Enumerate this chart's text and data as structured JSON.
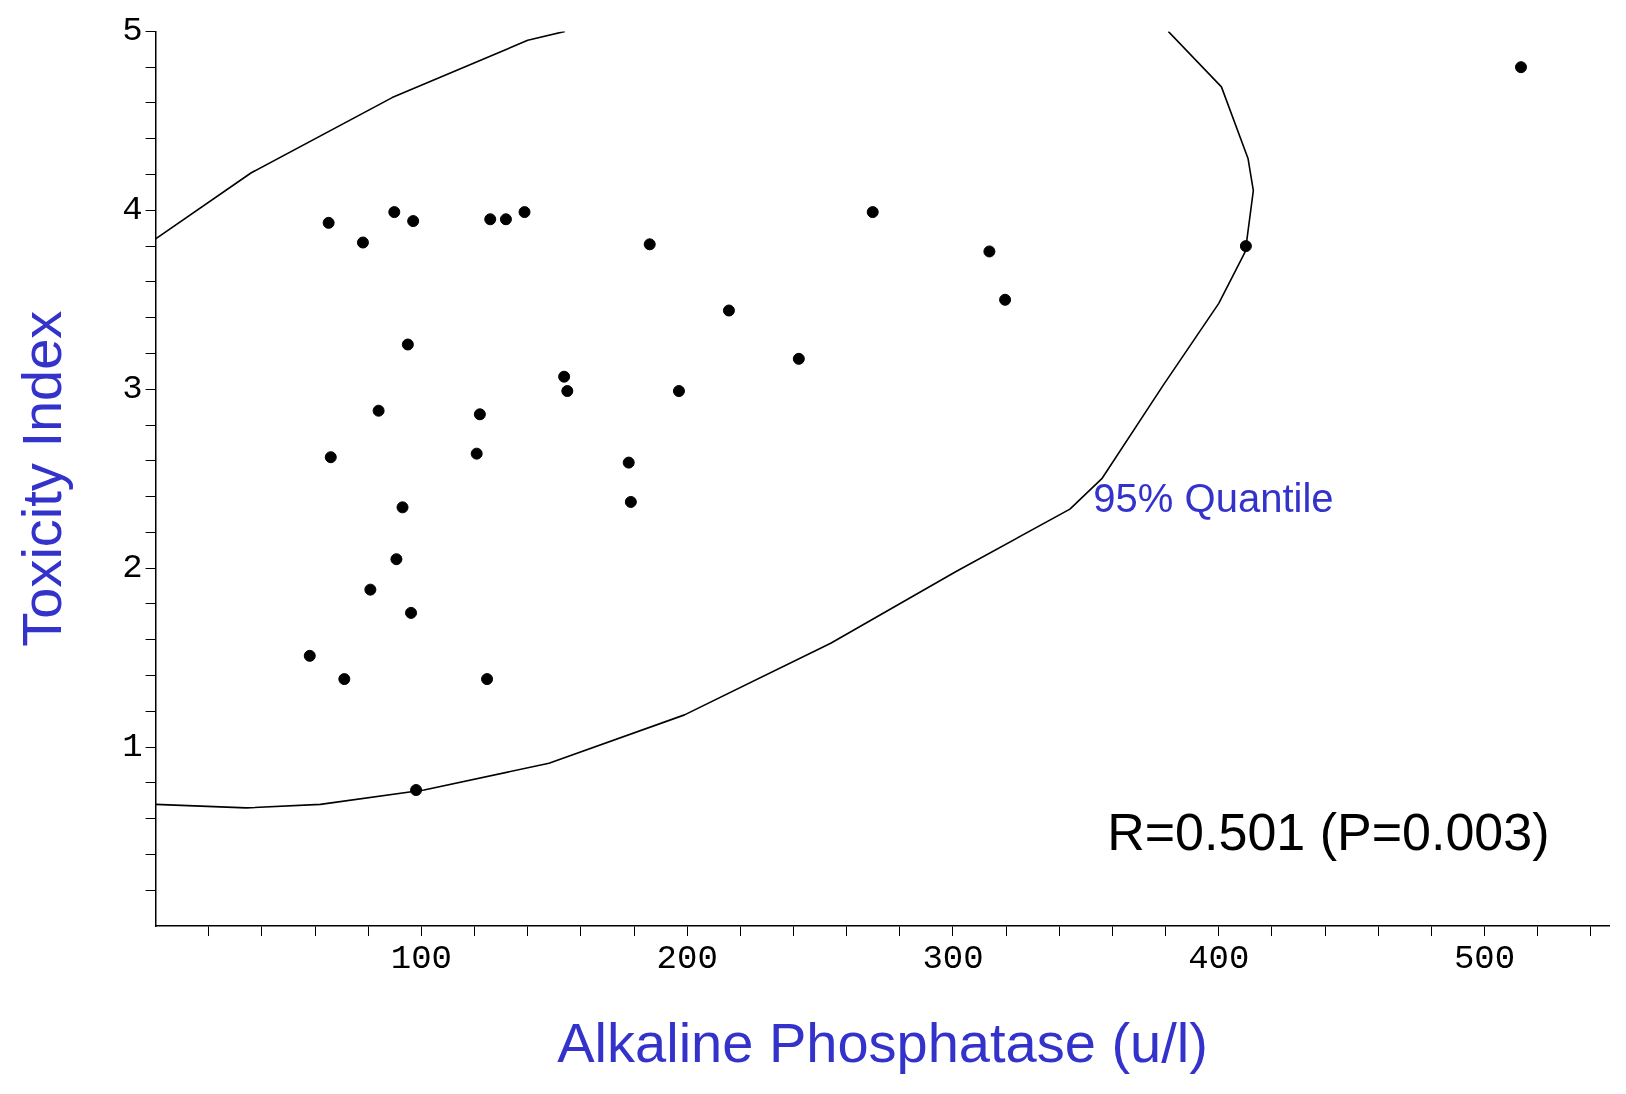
{
  "chart_data": {
    "type": "scatter",
    "xlabel": "Alkaline Phosphatase (u/l)",
    "ylabel": "Toxicity Index",
    "marker": "circle",
    "xlim": [
      0,
      547
    ],
    "ylim": [
      0,
      5
    ],
    "xticks": [
      {
        "value": 20,
        "label": null
      },
      {
        "value": 40,
        "label": null
      },
      {
        "value": 60,
        "label": null
      },
      {
        "value": 80,
        "label": null
      },
      100,
      {
        "value": 120,
        "label": null
      },
      {
        "value": 140,
        "label": null
      },
      {
        "value": 160,
        "label": null
      },
      {
        "value": 180,
        "label": null
      },
      200,
      {
        "value": 220,
        "label": null
      },
      {
        "value": 240,
        "label": null
      },
      {
        "value": 260,
        "label": null
      },
      {
        "value": 280,
        "label": null
      },
      300,
      {
        "value": 320,
        "label": null
      },
      {
        "value": 340,
        "label": null
      },
      {
        "value": 360,
        "label": null
      },
      {
        "value": 380,
        "label": null
      },
      400,
      {
        "value": 420,
        "label": null
      },
      {
        "value": 440,
        "label": null
      },
      {
        "value": 460,
        "label": null
      },
      {
        "value": 480,
        "label": null
      },
      500,
      {
        "value": 520,
        "label": null
      },
      {
        "value": 540,
        "label": null
      }
    ],
    "yticks": [
      {
        "value": 0.2,
        "label": null
      },
      {
        "value": 0.4,
        "label": null
      },
      {
        "value": 0.6,
        "label": null
      },
      {
        "value": 0.8,
        "label": null
      },
      1,
      {
        "value": 1.2,
        "label": null
      },
      {
        "value": 1.4,
        "label": null
      },
      {
        "value": 1.6,
        "label": null
      },
      {
        "value": 1.8,
        "label": null
      },
      2,
      {
        "value": 2.2,
        "label": null
      },
      {
        "value": 2.4,
        "label": null
      },
      {
        "value": 2.6,
        "label": null
      },
      {
        "value": 2.8,
        "label": null
      },
      3,
      {
        "value": 3.2,
        "label": null
      },
      {
        "value": 3.4,
        "label": null
      },
      {
        "value": 3.6,
        "label": null
      },
      {
        "value": 3.8,
        "label": null
      },
      4,
      {
        "value": 4.2,
        "label": null
      },
      {
        "value": 4.4,
        "label": null
      },
      {
        "value": 4.6,
        "label": null
      },
      {
        "value": 4.8,
        "label": null
      },
      5
    ],
    "series": [
      {
        "color": "#000000",
        "x": [
          65.1,
          78,
          89.8,
          96.9,
          125.9,
          131.8,
          138.8,
          185.9,
          269.8,
          313.7,
          319.6,
          410.2,
          513.7,
          215.7,
          94.9,
          153.7,
          154.9,
          242,
          196.9,
          83.9,
          122,
          65.9,
          120.8,
          178,
          178.8,
          92.9,
          90.6,
          80.8,
          96.1,
          58,
          71,
          124.7,
          98
        ],
        "values": [
          3.93,
          3.82,
          3.99,
          3.94,
          3.95,
          3.95,
          3.99,
          3.81,
          3.99,
          3.77,
          3.5,
          3.8,
          4.8,
          3.44,
          3.25,
          3.07,
          2.99,
          3.17,
          2.99,
          2.88,
          2.86,
          2.62,
          2.64,
          2.59,
          2.37,
          2.34,
          2.05,
          1.88,
          1.75,
          1.51,
          1.38,
          1.38,
          0.76
        ]
      },
      {
        "type": "line",
        "color": "#000000",
        "marker": "none",
        "x": [
          0,
          36,
          89,
          140,
          154
        ],
        "values": [
          3.84,
          4.21,
          4.63,
          4.95,
          5
        ]
      },
      {
        "type": "line",
        "name": "95% Quantile",
        "color": "#000000",
        "marker": "none",
        "x": [
          381,
          401,
          411,
          413,
          410,
          400,
          379,
          356,
          344,
          301,
          254,
          199,
          148,
          101,
          62,
          34,
          0
        ],
        "values": [
          5,
          4.69,
          4.29,
          4.11,
          3.77,
          3.48,
          3.02,
          2.5,
          2.33,
          1.98,
          1.58,
          1.18,
          0.91,
          0.76,
          0.68,
          0.66,
          0.68
        ]
      }
    ],
    "annotations": [
      "R=0.501 (P=0.003)"
    ]
  }
}
